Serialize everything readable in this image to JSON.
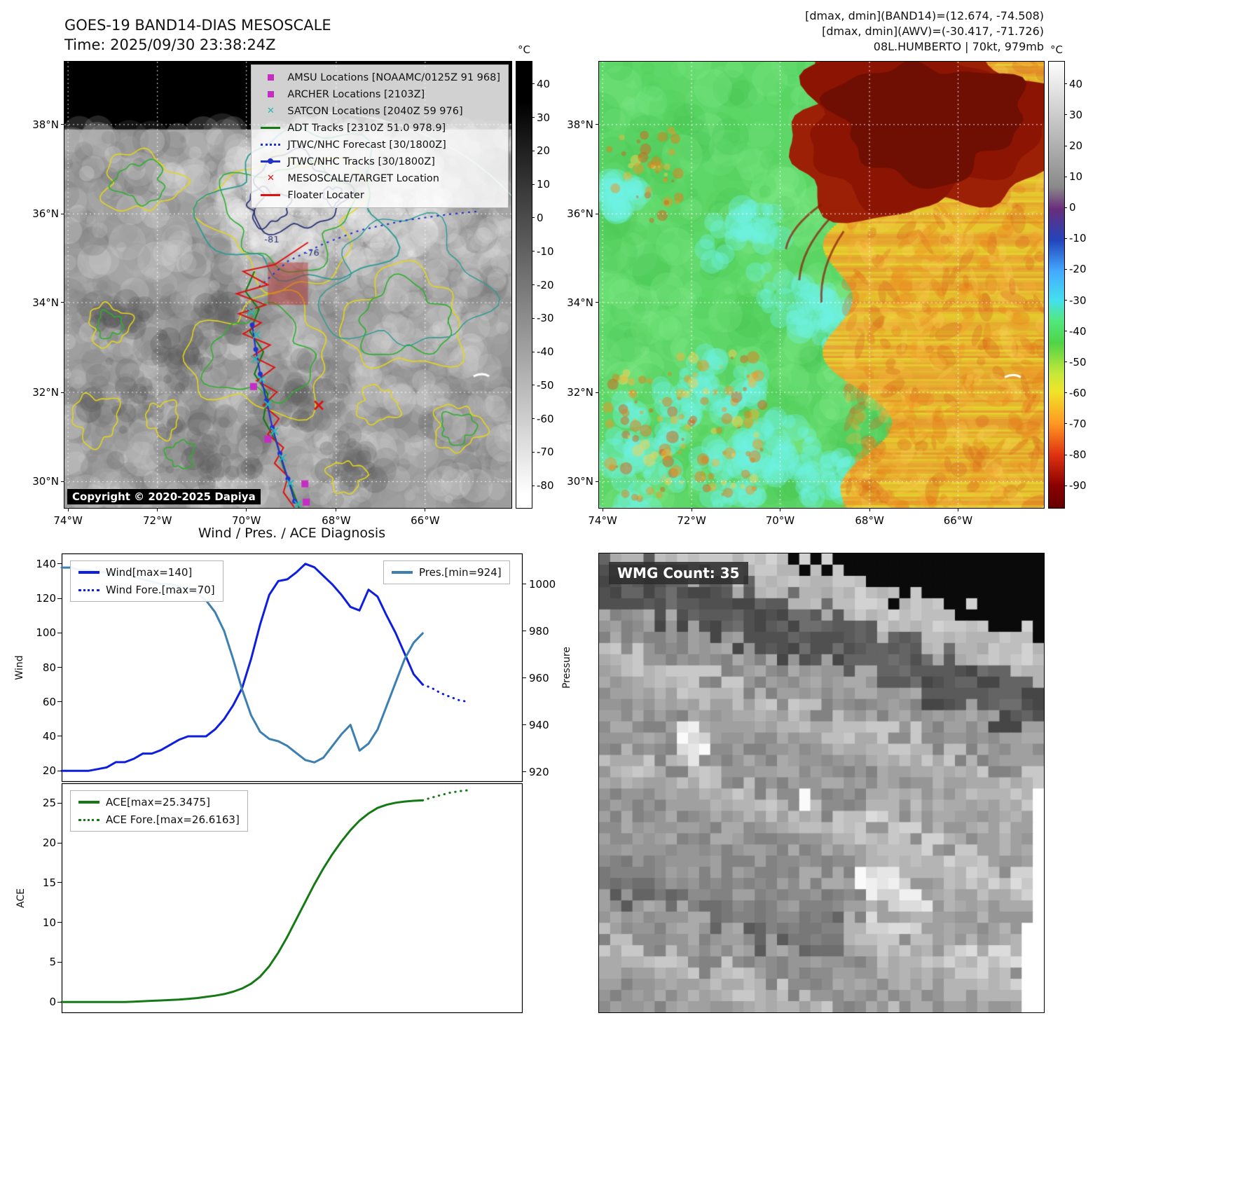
{
  "header": {
    "title": "GOES-19 BAND14-DIAS MESOSCALE",
    "time": "Time: 2025/09/30 23:38:24Z",
    "stats_band14": "[dmax, dmin](BAND14)=(12.674, -74.508)",
    "stats_awv": "[dmax, dmin](AWV)=(-30.417, -71.726)",
    "storm_status": "08L.HUMBERTO | 70kt, 979mb"
  },
  "map_band14": {
    "legend_items": [
      {
        "label": "AMSU Locations [NOAAMC/0125Z 91 968]",
        "marker": "square",
        "color": "#c42cc4"
      },
      {
        "label": "ARCHER Locations [2103Z]",
        "marker": "square",
        "color": "#c42cc4"
      },
      {
        "label": "SATCON Locations [2040Z 59 976]",
        "marker": "x",
        "color": "#29b6b6"
      },
      {
        "label": "ADT Tracks [2310Z 51.0 978.9]",
        "marker": "line",
        "color": "#157a15"
      },
      {
        "label": "JTWC/NHC Forecast [30/1800Z]",
        "marker": "dotted-line",
        "color": "#2233cc"
      },
      {
        "label": "JTWC/NHC Tracks [30/1800Z]",
        "marker": "line-dot",
        "color": "#2233cc"
      },
      {
        "label": "MESOSCALE/TARGET Location",
        "marker": "x",
        "color": "#dd1111"
      },
      {
        "label": "Floater Locater",
        "marker": "line",
        "color": "#dd1111"
      }
    ],
    "contour_labels": [
      "-81",
      "-76"
    ],
    "copyright": "Copyright © 2020-2025 Dapiya",
    "lat_ticks": [
      "38°N",
      "36°N",
      "34°N",
      "32°N",
      "30°N"
    ],
    "lon_ticks": [
      "74°W",
      "72°W",
      "70°W",
      "68°W",
      "66°W"
    ],
    "colorbar": {
      "unit": "°C",
      "ticks": [
        "40",
        "30",
        "20",
        "10",
        "0",
        "-10",
        "-20",
        "-30",
        "-40",
        "-50",
        "-60",
        "-70",
        "-80"
      ]
    }
  },
  "map_awv": {
    "lat_ticks": [
      "38°N",
      "36°N",
      "34°N",
      "32°N",
      "30°N"
    ],
    "lon_ticks": [
      "74°W",
      "72°W",
      "70°W",
      "68°W",
      "66°W"
    ],
    "colorbar": {
      "unit": "°C",
      "ticks": [
        "40",
        "30",
        "20",
        "10",
        "0",
        "-10",
        "-20",
        "-30",
        "-40",
        "-50",
        "-60",
        "-70",
        "-80",
        "-90"
      ]
    }
  },
  "wmg": {
    "count_label": "WMG Count: 35"
  },
  "chart_data": [
    {
      "type": "line",
      "title": "Wind / Pres. / ACE Diagnosis",
      "xlabel": "",
      "ylabel_left": "Wind",
      "ylabel_right": "Pressure",
      "xlim": [
        0,
        51
      ],
      "ylim_left": [
        14,
        146
      ],
      "ylim_right": [
        916,
        1013
      ],
      "yticks_left": [
        20,
        40,
        60,
        80,
        100,
        120,
        140
      ],
      "yticks_right": [
        920,
        940,
        960,
        980,
        1000
      ],
      "grid": false,
      "legend": [
        {
          "name": "Wind[max=140]",
          "style": "solid",
          "color": "#0d1ee0"
        },
        {
          "name": "Wind Fore.[max=70]",
          "style": "dotted",
          "color": "#0d1ee0"
        },
        {
          "name": "Pres.[min=924]",
          "style": "solid",
          "color": "#3c7fb1"
        }
      ],
      "series": [
        {
          "name": "Wind",
          "axis": "left",
          "style": "solid",
          "color": "#0d1ee0",
          "x": [
            0,
            1,
            2,
            3,
            4,
            5,
            6,
            7,
            8,
            9,
            10,
            11,
            12,
            13,
            14,
            15,
            16,
            17,
            18,
            19,
            20,
            21,
            22,
            23,
            24,
            25,
            26,
            27,
            28,
            29,
            30,
            31,
            32,
            33,
            34,
            35,
            36,
            37,
            38,
            39,
            40
          ],
          "values": [
            20,
            20,
            20,
            20,
            21,
            22,
            25,
            25,
            27,
            30,
            30,
            32,
            35,
            38,
            40,
            40,
            40,
            44,
            50,
            58,
            68,
            85,
            105,
            122,
            130,
            131,
            135,
            140,
            138,
            133,
            128,
            122,
            115,
            113,
            125,
            121,
            110,
            100,
            88,
            76,
            70
          ]
        },
        {
          "name": "Wind Forecast",
          "axis": "left",
          "style": "dotted",
          "color": "#0d1ee0",
          "x": [
            40,
            41,
            42,
            43,
            44,
            45
          ],
          "values": [
            70,
            68,
            65,
            63,
            61,
            60
          ]
        },
        {
          "name": "Pressure",
          "axis": "right",
          "style": "solid",
          "color": "#3c7fb1",
          "x": [
            0,
            1,
            2,
            3,
            4,
            5,
            6,
            7,
            8,
            9,
            10,
            11,
            12,
            13,
            14,
            15,
            16,
            17,
            18,
            19,
            20,
            21,
            22,
            23,
            24,
            25,
            26,
            27,
            28,
            29,
            30,
            31,
            32,
            33,
            34,
            35,
            36,
            37,
            38,
            39,
            40
          ],
          "values": [
            1007,
            1007,
            1006,
            1006,
            1005,
            1005,
            1004,
            1004,
            1003,
            1002,
            1001,
            1000,
            1000,
            999,
            998,
            996,
            993,
            988,
            980,
            968,
            955,
            944,
            937,
            934,
            933,
            931,
            928,
            925,
            924,
            926,
            931,
            936,
            940,
            929,
            932,
            938,
            948,
            958,
            968,
            975,
            979
          ]
        }
      ]
    },
    {
      "type": "line",
      "title": "",
      "xlabel": "",
      "ylabel_left": "ACE",
      "xlim": [
        0,
        51
      ],
      "ylim_left": [
        -1.3,
        27.5
      ],
      "yticks_left": [
        0,
        5,
        10,
        15,
        20,
        25
      ],
      "grid": false,
      "legend": [
        {
          "name": "ACE[max=25.3475]",
          "style": "solid",
          "color": "#157a15"
        },
        {
          "name": "ACE Fore.[max=26.6163]",
          "style": "dotted",
          "color": "#157a15"
        }
      ],
      "series": [
        {
          "name": "ACE",
          "axis": "left",
          "style": "solid",
          "color": "#157a15",
          "x": [
            0,
            1,
            2,
            3,
            4,
            5,
            6,
            7,
            8,
            9,
            10,
            11,
            12,
            13,
            14,
            15,
            16,
            17,
            18,
            19,
            20,
            21,
            22,
            23,
            24,
            25,
            26,
            27,
            28,
            29,
            30,
            31,
            32,
            33,
            34,
            35,
            36,
            37,
            38,
            39,
            40
          ],
          "values": [
            0,
            0,
            0,
            0,
            0,
            0,
            0,
            0,
            0.05,
            0.1,
            0.15,
            0.2,
            0.25,
            0.3,
            0.4,
            0.5,
            0.65,
            0.8,
            1.0,
            1.3,
            1.7,
            2.3,
            3.2,
            4.5,
            6.2,
            8.2,
            10.4,
            12.6,
            14.8,
            16.8,
            18.6,
            20.2,
            21.6,
            22.8,
            23.7,
            24.4,
            24.8,
            25.05,
            25.2,
            25.3,
            25.3475
          ]
        },
        {
          "name": "ACE Forecast",
          "axis": "left",
          "style": "dotted",
          "color": "#157a15",
          "x": [
            40,
            41,
            42,
            43,
            44,
            45
          ],
          "values": [
            25.3475,
            25.7,
            26.0,
            26.3,
            26.5,
            26.6163
          ]
        }
      ]
    }
  ]
}
